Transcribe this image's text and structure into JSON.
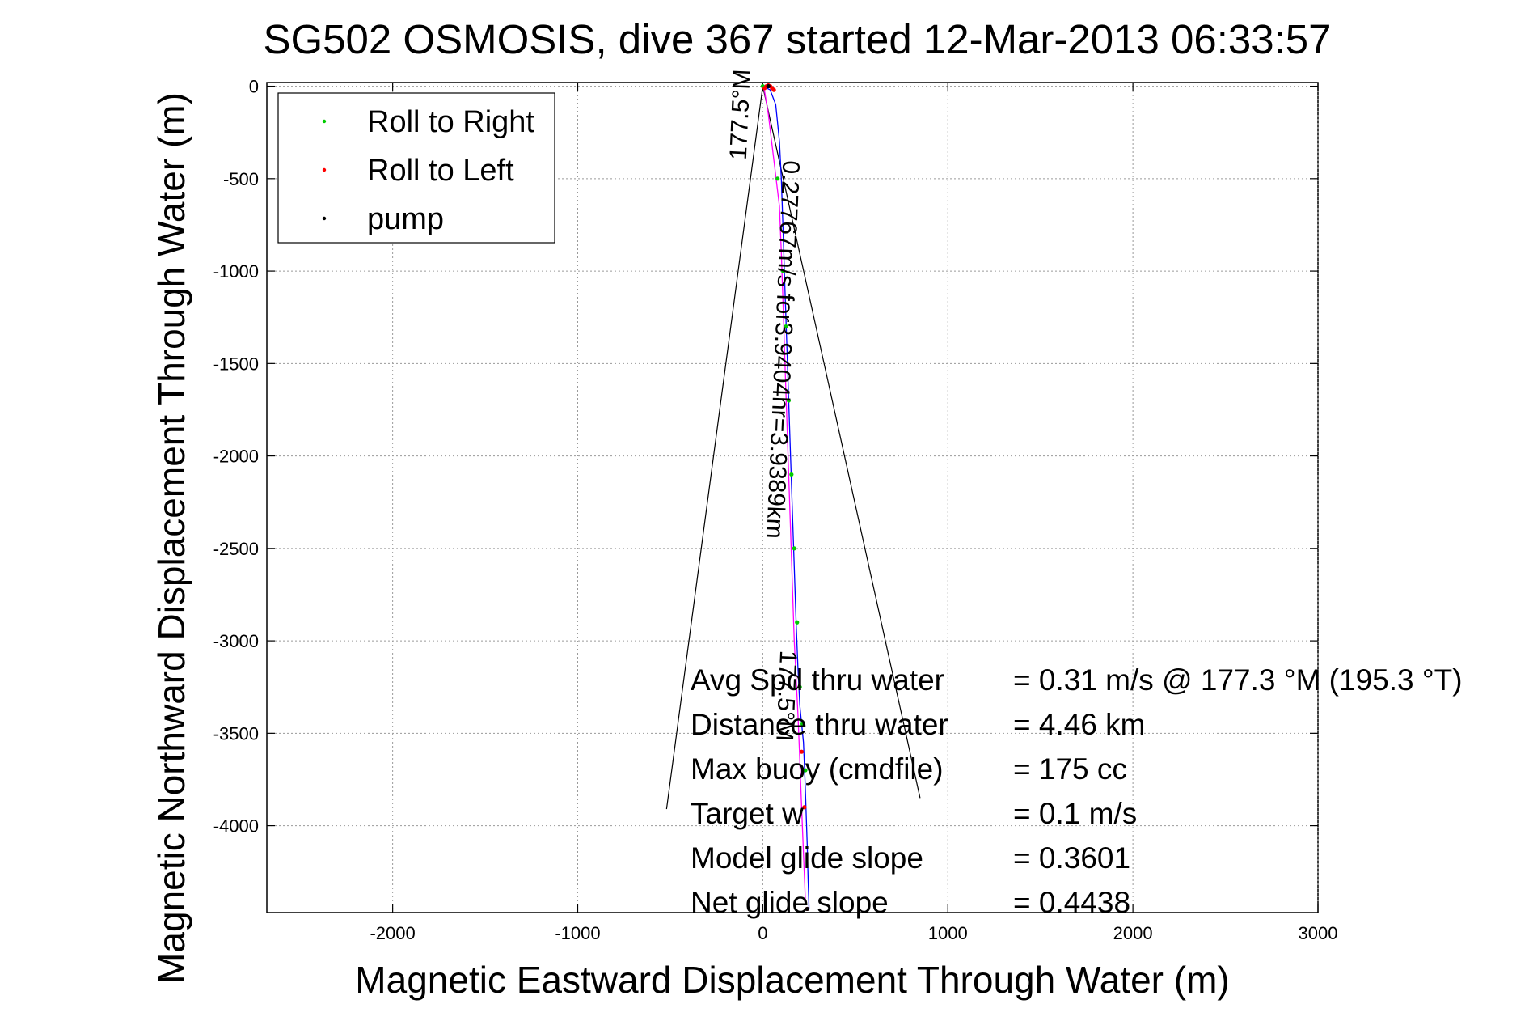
{
  "chart_data": {
    "type": "line",
    "title": "SG502 OSMOSIS, dive 367 started 12-Mar-2013 06:33:57",
    "xlabel": "Magnetic Eastward Displacement Through Water (m)",
    "ylabel": "Magnetic Northward Displacement Through Water (m)",
    "xlim": [
      -2680,
      3000
    ],
    "ylim": [
      -4470,
      20
    ],
    "grid": true,
    "legend_position": "top-left",
    "x_ticks": [
      -2000,
      -1000,
      0,
      1000,
      2000,
      3000
    ],
    "y_ticks": [
      0,
      -500,
      -1000,
      -1500,
      -2000,
      -2500,
      -3000,
      -3500,
      -4000
    ],
    "x_tick_labels": [
      "-2000",
      "-1000",
      "0",
      "1000",
      "2000",
      "3000"
    ],
    "y_tick_labels": [
      "0",
      "-500",
      "-1000",
      "-1500",
      "-2000",
      "-2500",
      "-3000",
      "-3500",
      "-4000"
    ],
    "legend": [
      {
        "label": "Roll to Right",
        "color": "#00cc00"
      },
      {
        "label": "Roll to Left",
        "color": "#ff0000"
      },
      {
        "label": "pump",
        "color": "#000000"
      }
    ],
    "series": [
      {
        "color": "#0000ff",
        "x": [
          0,
          40,
          70,
          90,
          100,
          110,
          120,
          130,
          140,
          150,
          160,
          170,
          180,
          190,
          200,
          220,
          230,
          240,
          245,
          250
        ],
        "y": [
          0,
          -20,
          -100,
          -300,
          -500,
          -800,
          -1100,
          -1400,
          -1700,
          -2000,
          -2300,
          -2600,
          -2900,
          -3150,
          -3350,
          -3550,
          -3800,
          -4100,
          -4300,
          -4450
        ]
      },
      {
        "color": "#ff00ff",
        "x": [
          0,
          10,
          30,
          60,
          90,
          100,
          110,
          120,
          130,
          140,
          150,
          160,
          170,
          180,
          190,
          200,
          210,
          220,
          230
        ],
        "y": [
          0,
          -30,
          -150,
          -400,
          -650,
          -900,
          -1200,
          -1500,
          -1800,
          -2100,
          -2400,
          -2700,
          -3000,
          -3200,
          -3400,
          -3650,
          -3900,
          -4150,
          -4400
        ]
      }
    ],
    "markers_right": {
      "color": "#00cc00",
      "x": [
        0,
        80,
        110,
        125,
        140,
        155,
        170,
        185,
        200,
        215,
        230
      ],
      "y": [
        0,
        -500,
        -1000,
        -1300,
        -1700,
        -2100,
        -2500,
        -2900,
        -3250,
        -3450,
        -3700
      ]
    },
    "markers_left": {
      "color": "#ff0000",
      "x": [
        10,
        20,
        30,
        40,
        50,
        60,
        210,
        225,
        240
      ],
      "y": [
        -10,
        0,
        5,
        0,
        -10,
        -20,
        -3600,
        -3900,
        -4450
      ]
    },
    "markers_pump": {
      "color": "#000000",
      "x": [
        30,
        240
      ],
      "y": [
        0,
        -4450
      ]
    },
    "wedge_lines": [
      {
        "color": "#000000",
        "x": [
          0,
          -520
        ],
        "y": [
          0,
          -3910
        ]
      },
      {
        "color": "#000000",
        "x": [
          0,
          850
        ],
        "y": [
          0,
          -3850
        ]
      }
    ],
    "rotated_annotations": [
      {
        "text": "0.27767m/s for3.9404hr=3.9389km",
        "x": 110,
        "y": -400,
        "angle": 92.5
      },
      {
        "text": "177.5°M",
        "x": 95,
        "y": -3050,
        "angle": 92.5
      },
      {
        "text": "177.5°M",
        "x": -90,
        "y": -400,
        "angle": -87.5
      }
    ],
    "annotations": [
      {
        "label": "Avg Spd thru water",
        "value": "=  0.31 m/s @ 177.3 °M (195.3 °T)"
      },
      {
        "label": "Distance thru water",
        "value": "=  4.46 km"
      },
      {
        "label": "Max buoy (cmdfile)",
        "value": "= 175 cc"
      },
      {
        "label": "Target w",
        "value": "= 0.1 m/s"
      },
      {
        "label": "Model glide slope",
        "value": "= 0.3601"
      },
      {
        "label": "Net glide slope",
        "value": "= 0.4438"
      }
    ]
  }
}
